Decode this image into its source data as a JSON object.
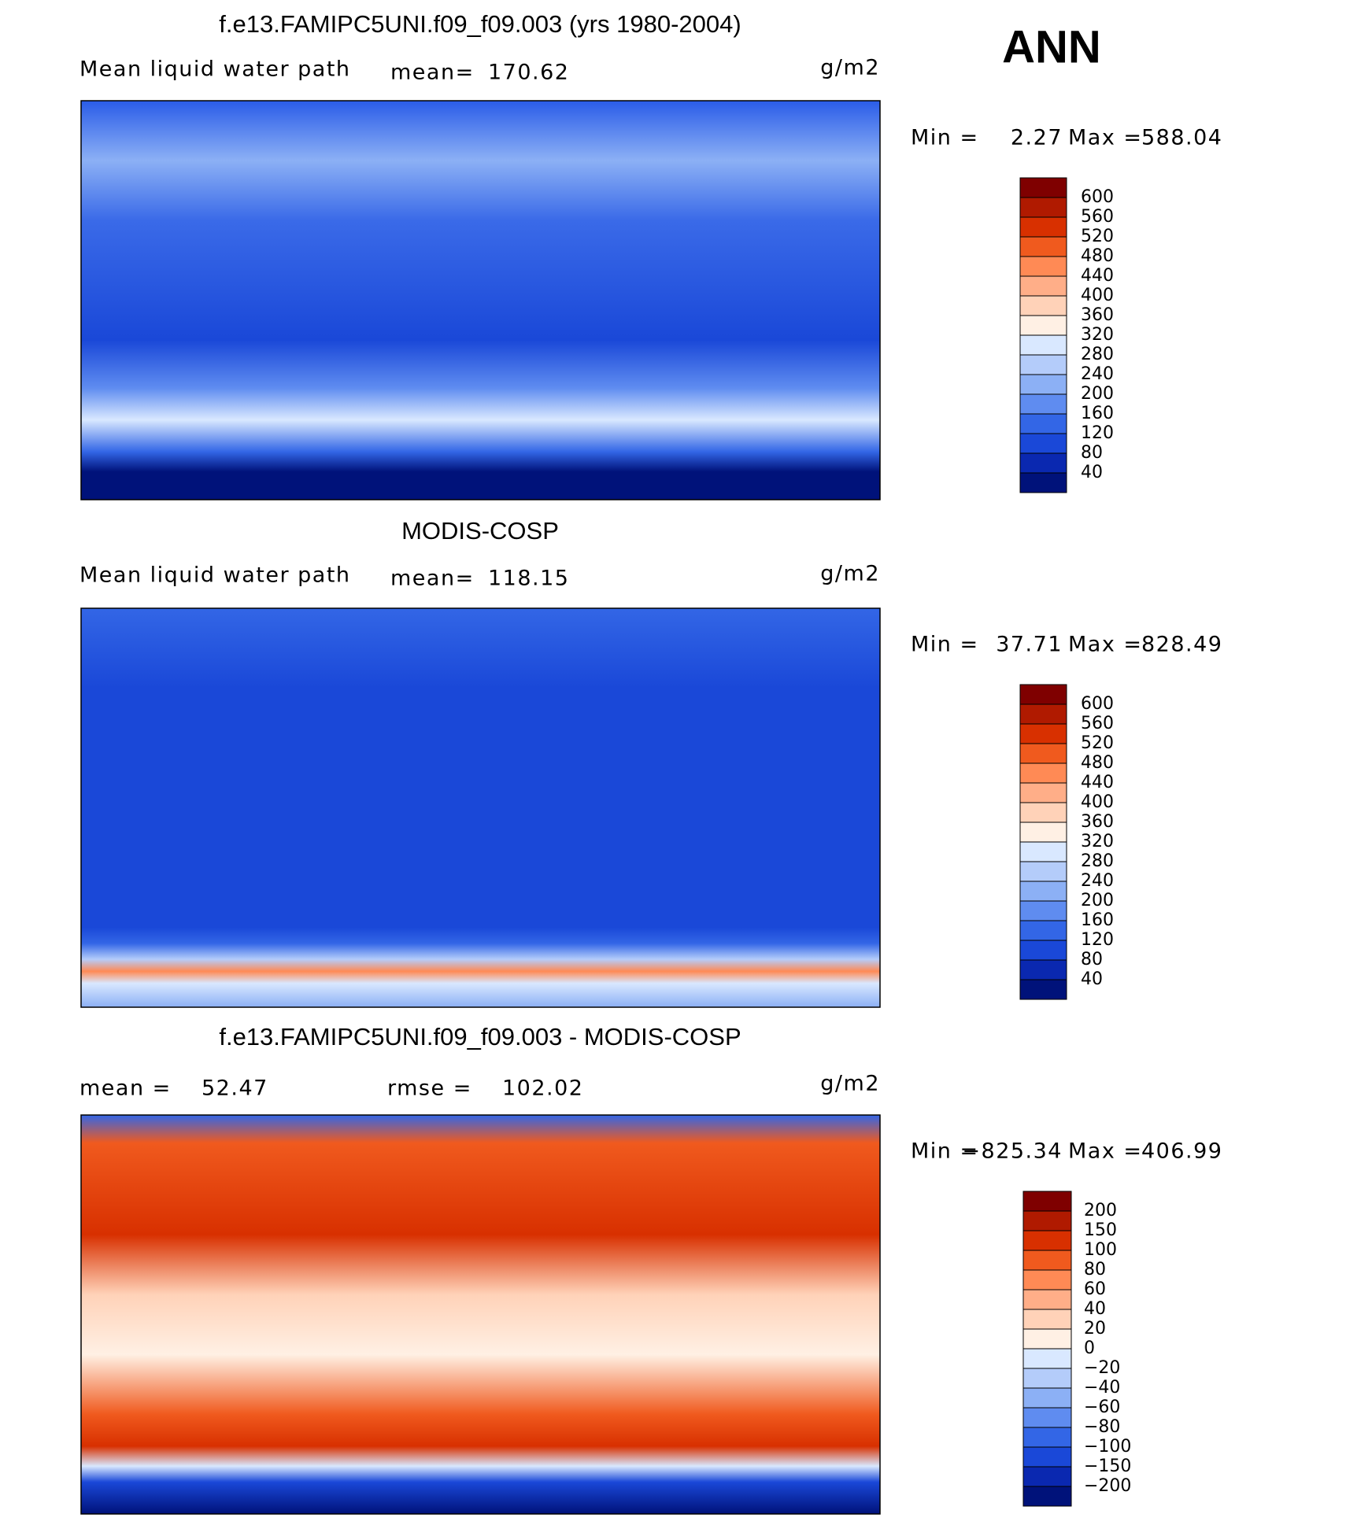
{
  "header": {
    "title": "ANN"
  },
  "panels": [
    {
      "title": "f.e13.FAMIPC5UNI.f09_f09.003 (yrs 1980-2004)",
      "field": "Mean liquid water path",
      "stat_label": "mean=",
      "stat_value": "170.62",
      "units": "g/m2",
      "min_label": "Min =",
      "min": "2.27",
      "max_label": "Max =",
      "max": "588.04",
      "levels": [
        "600",
        "560",
        "520",
        "480",
        "440",
        "400",
        "360",
        "320",
        "280",
        "240",
        "200",
        "160",
        "120",
        "80",
        "40"
      ],
      "colors": [
        "#7f0000",
        "#b01a00",
        "#d83000",
        "#f05a1e",
        "#ff8a55",
        "#ffae88",
        "#ffd2b8",
        "#fff0e4",
        "#d9e8ff",
        "#b4ccfa",
        "#8cb0f5",
        "#5f8cf0",
        "#3366e6",
        "#1a48d8",
        "#0a28b0",
        "#00127a"
      ]
    },
    {
      "title": "MODIS-COSP",
      "field": "Mean liquid water path",
      "stat_label": "mean=",
      "stat_value": "118.15",
      "units": "g/m2",
      "min_label": "Min =",
      "min": "37.71",
      "max_label": "Max =",
      "max": "828.49",
      "levels": [
        "600",
        "560",
        "520",
        "480",
        "440",
        "400",
        "360",
        "320",
        "280",
        "240",
        "200",
        "160",
        "120",
        "80",
        "40"
      ],
      "colors": [
        "#7f0000",
        "#b01a00",
        "#d83000",
        "#f05a1e",
        "#ff8a55",
        "#ffae88",
        "#ffd2b8",
        "#fff0e4",
        "#d9e8ff",
        "#b4ccfa",
        "#8cb0f5",
        "#5f8cf0",
        "#3366e6",
        "#1a48d8",
        "#0a28b0",
        "#00127a"
      ]
    },
    {
      "title": "f.e13.FAMIPC5UNI.f09_f09.003 - MODIS-COSP",
      "field": "",
      "stat_label": "mean =",
      "stat_value": "52.47",
      "rmse_label": "rmse =",
      "rmse_value": "102.02",
      "units": "g/m2",
      "min_label": "Min =",
      "min": "−825.34",
      "max_label": "Max =",
      "max": "406.99",
      "levels": [
        "200",
        "150",
        "100",
        "80",
        "60",
        "40",
        "20",
        "0",
        "−20",
        "−40",
        "−60",
        "−80",
        "−100",
        "−150",
        "−200"
      ],
      "colors": [
        "#7f0000",
        "#b01a00",
        "#d83000",
        "#f05a1e",
        "#ff8a55",
        "#ffae88",
        "#ffd2b8",
        "#fff0e4",
        "#d9e8ff",
        "#b4ccfa",
        "#8cb0f5",
        "#5f8cf0",
        "#3366e6",
        "#1a48d8",
        "#0a28b0",
        "#00127a"
      ]
    }
  ]
}
